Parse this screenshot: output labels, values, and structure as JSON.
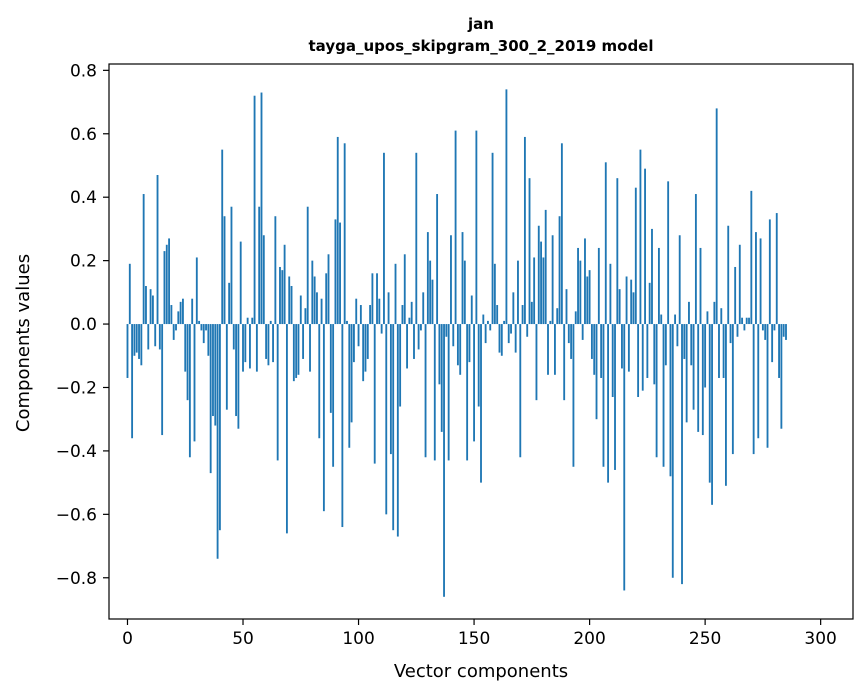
{
  "chart_data": {
    "type": "bar",
    "title": "jan",
    "subtitle": "tayga_upos_skipgram_300_2_2019 model",
    "xlabel": "Vector components",
    "ylabel": "Components values",
    "xlim": [
      -8,
      314
    ],
    "ylim": [
      -0.93,
      0.82
    ],
    "xticks": [
      0,
      50,
      100,
      150,
      200,
      250,
      300
    ],
    "yticks": [
      -0.8,
      -0.6,
      -0.4,
      -0.2,
      0.0,
      0.2,
      0.4,
      0.6,
      0.8
    ],
    "ytick_labels": [
      "−0.8",
      "−0.6",
      "−0.4",
      "−0.2",
      "0.0",
      "0.2",
      "0.4",
      "0.6",
      "0.8"
    ],
    "grid": false,
    "color": "#1f77b4",
    "values": [
      -0.17,
      0.19,
      -0.36,
      -0.1,
      -0.09,
      -0.11,
      -0.13,
      0.41,
      0.12,
      -0.08,
      0.11,
      0.09,
      -0.07,
      0.47,
      -0.08,
      -0.35,
      0.23,
      0.25,
      0.27,
      0.06,
      -0.05,
      -0.02,
      0.04,
      0.07,
      0.08,
      -0.15,
      -0.24,
      -0.42,
      0.08,
      -0.37,
      0.21,
      0.01,
      -0.02,
      -0.06,
      -0.02,
      -0.1,
      -0.47,
      -0.29,
      -0.32,
      -0.74,
      -0.65,
      0.55,
      0.34,
      -0.27,
      0.13,
      0.37,
      -0.08,
      -0.29,
      -0.33,
      0.26,
      -0.15,
      -0.12,
      0.02,
      -0.14,
      0.02,
      0.72,
      -0.15,
      0.37,
      0.73,
      0.28,
      -0.11,
      -0.13,
      0.01,
      -0.12,
      0.34,
      -0.43,
      0.18,
      0.17,
      0.25,
      -0.66,
      0.15,
      0.12,
      -0.18,
      -0.17,
      -0.16,
      0.09,
      -0.11,
      0.05,
      0.37,
      -0.15,
      0.2,
      0.15,
      0.1,
      -0.36,
      0.08,
      -0.59,
      0.16,
      0.22,
      -0.28,
      -0.45,
      0.33,
      0.59,
      0.32,
      -0.64,
      0.57,
      0.01,
      -0.39,
      -0.31,
      -0.12,
      0.08,
      -0.07,
      0.06,
      -0.18,
      -0.15,
      -0.11,
      0.06,
      0.16,
      -0.44,
      0.16,
      0.08,
      -0.03,
      0.54,
      -0.6,
      0.1,
      -0.41,
      -0.65,
      0.19,
      -0.67,
      -0.26,
      0.06,
      0.22,
      -0.14,
      0.02,
      0.07,
      -0.11,
      0.54,
      -0.08,
      -0.02,
      0.1,
      -0.42,
      0.29,
      0.2,
      0.14,
      -0.43,
      0.41,
      -0.19,
      -0.34,
      -0.86,
      -0.04,
      -0.43,
      0.28,
      -0.07,
      0.61,
      -0.13,
      -0.16,
      0.29,
      0.2,
      -0.43,
      -0.12,
      0.09,
      -0.37,
      0.61,
      -0.26,
      -0.5,
      0.03,
      -0.06,
      0.01,
      -0.02,
      0.54,
      0.19,
      0.06,
      -0.09,
      -0.1,
      0.01,
      0.74,
      -0.06,
      -0.03,
      0.1,
      -0.09,
      0.2,
      -0.42,
      0.06,
      0.59,
      -0.04,
      0.46,
      0.07,
      0.21,
      -0.24,
      0.31,
      0.26,
      0.21,
      0.36,
      -0.16,
      0.01,
      0.28,
      -0.16,
      0.05,
      0.34,
      0.57,
      -0.24,
      0.11,
      -0.06,
      -0.11,
      -0.45,
      0.04,
      0.24,
      0.2,
      -0.05,
      0.27,
      0.15,
      0.17,
      -0.11,
      -0.16,
      -0.3,
      0.24,
      -0.17,
      -0.45,
      0.51,
      -0.5,
      0.19,
      -0.23,
      -0.46,
      0.46,
      0.11,
      -0.14,
      -0.84,
      0.15,
      -0.15,
      0.14,
      0.1,
      0.43,
      -0.23,
      0.55,
      -0.21,
      0.49,
      -0.17,
      0.13,
      0.3,
      -0.19,
      -0.42,
      0.24,
      0.03,
      -0.45,
      -0.13,
      0.45,
      -0.48,
      -0.8,
      0.03,
      -0.07,
      0.28,
      -0.82,
      -0.11,
      -0.31,
      0.07,
      -0.13,
      -0.27,
      0.41,
      -0.34,
      0.24,
      -0.35,
      -0.2,
      0.04,
      -0.5,
      -0.57,
      0.07,
      0.68,
      -0.17,
      0.05,
      -0.17,
      -0.51,
      0.31,
      -0.06,
      -0.41,
      0.18,
      -0.04,
      0.25,
      0.02,
      -0.02,
      0.02,
      0.02,
      0.42,
      -0.41,
      0.29,
      -0.36,
      0.27,
      -0.02,
      -0.05,
      -0.39,
      0.33,
      -0.12,
      -0.02,
      0.35,
      -0.17,
      -0.33,
      -0.04,
      -0.05
    ]
  }
}
